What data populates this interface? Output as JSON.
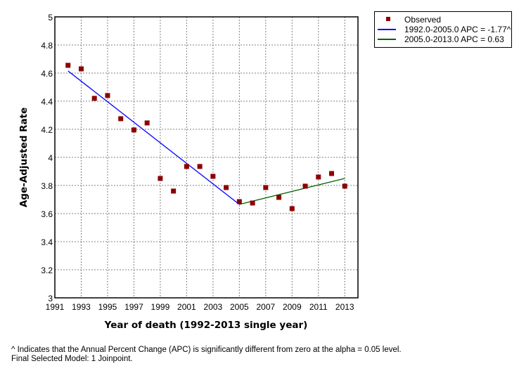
{
  "chart_data": {
    "type": "scatter",
    "title": "",
    "xlabel": "Year of death (1992-2013 single year)",
    "ylabel": "Age-Adjusted Rate",
    "xlim": [
      1991,
      2014
    ],
    "ylim": [
      3,
      5
    ],
    "grid": true,
    "x_ticks": [
      "1991",
      "1993",
      "1995",
      "1997",
      "1999",
      "2001",
      "2003",
      "2005",
      "2007",
      "2009",
      "2011",
      "2013"
    ],
    "y_ticks": [
      "5",
      "4.8",
      "4.6",
      "4.4",
      "4.2",
      "4",
      "3.8",
      "3.6",
      "3.4",
      "3.2",
      "3"
    ],
    "legend_position": "top-right",
    "series": [
      {
        "name": "Observed",
        "kind": "points",
        "color": "#8b0000",
        "x": [
          1992,
          1993,
          1994,
          1995,
          1996,
          1997,
          1998,
          1999,
          2000,
          2001,
          2002,
          2003,
          2004,
          2005,
          2006,
          2007,
          2008,
          2009,
          2010,
          2011,
          2012,
          2013
        ],
        "y": [
          4.655,
          4.63,
          4.42,
          4.44,
          4.275,
          4.195,
          4.245,
          3.85,
          3.76,
          3.935,
          3.935,
          3.865,
          3.785,
          3.685,
          3.675,
          3.785,
          3.715,
          3.635,
          3.795,
          3.86,
          3.885,
          3.795
        ]
      },
      {
        "name": "1992.0-2005.0 APC  = -1.77^",
        "kind": "line",
        "color": "#0000ff",
        "x": [
          1992,
          2005
        ],
        "y": [
          4.615,
          3.665
        ]
      },
      {
        "name": "2005.0-2013.0 APC  =  0.63",
        "kind": "line",
        "color": "#006400",
        "x": [
          2005,
          2013
        ],
        "y": [
          3.665,
          3.85
        ]
      }
    ]
  },
  "legend": {
    "observed": "Observed",
    "seg1": "1992.0-2005.0 APC  = -1.77^",
    "seg2": "2005.0-2013.0 APC  =  0.63"
  },
  "footnote": {
    "line1": "^ Indicates that the Annual Percent Change (APC) is significantly different from zero at the alpha = 0.05 level.",
    "line2": "Final Selected Model: 1 Joinpoint."
  }
}
